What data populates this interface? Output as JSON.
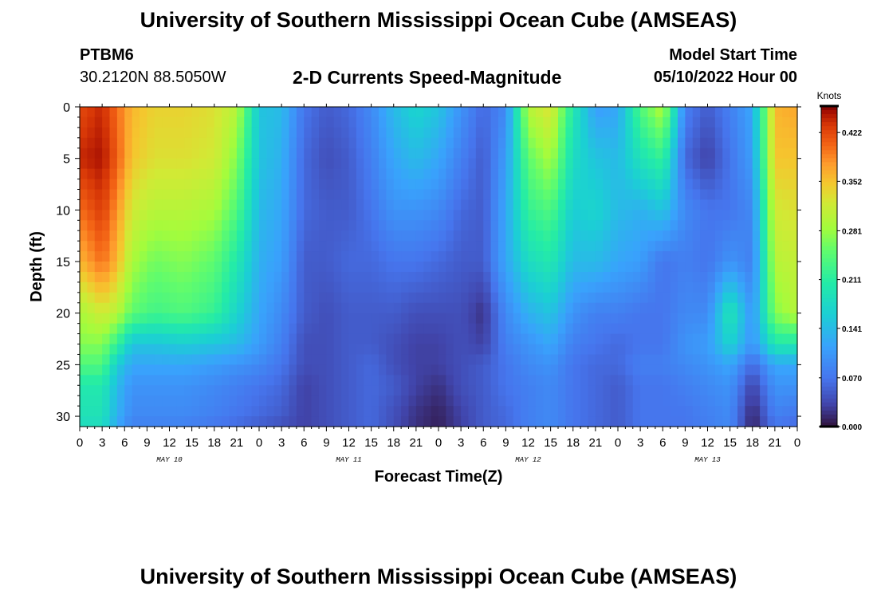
{
  "header": {
    "title": "University of Southern Mississippi Ocean Cube (AMSEAS)",
    "station": "PTBM6",
    "coords": "30.2120N  88.5050W",
    "subtitle": "2-D Currents Speed-Magnitude",
    "model_start_label": "Model Start Time",
    "model_start_value": "05/10/2022 Hour 00"
  },
  "footer": {
    "title": "University of Southern Mississippi Ocean Cube (AMSEAS)"
  },
  "chart_data": {
    "type": "heatmap",
    "xlabel": "Forecast Time(Z)",
    "ylabel": "Depth (ft)",
    "x_ticks": [
      "0",
      "3",
      "6",
      "9",
      "12",
      "15",
      "18",
      "21",
      "0",
      "3",
      "6",
      "9",
      "12",
      "15",
      "18",
      "21",
      "0",
      "3",
      "6",
      "9",
      "12",
      "15",
      "18",
      "21",
      "0",
      "3",
      "6",
      "9",
      "12",
      "15",
      "18",
      "21",
      "0"
    ],
    "x_range_hours": [
      0,
      96
    ],
    "day_labels": [
      {
        "label": "MAY 10",
        "hour": 12
      },
      {
        "label": "MAY 11",
        "hour": 36
      },
      {
        "label": "MAY 12",
        "hour": 60
      },
      {
        "label": "MAY 13",
        "hour": 84
      }
    ],
    "y_ticks": [
      "0",
      "5",
      "10",
      "15",
      "20",
      "25",
      "30"
    ],
    "ylim": [
      0,
      31
    ],
    "y_inverted": true,
    "colorbar": {
      "title": "Knots",
      "ticks": [
        "0.422",
        "0.352",
        "0.281",
        "0.211",
        "0.141",
        "0.070",
        "0.000"
      ],
      "range": [
        0.0,
        0.46
      ]
    },
    "time_hours": [
      0,
      3,
      5,
      7,
      10,
      14,
      18,
      21,
      24,
      27,
      30,
      33,
      36,
      39,
      42,
      45,
      48,
      51,
      54,
      57,
      60,
      63,
      66,
      69,
      72,
      75,
      78,
      81,
      84,
      87,
      90,
      93,
      96
    ],
    "depth_ft": [
      0,
      5,
      10,
      15,
      20,
      23,
      25,
      27,
      30,
      31
    ],
    "speed_knots": [
      [
        0.42,
        0.44,
        0.4,
        0.36,
        0.29,
        0.27,
        0.24,
        0.2,
        0.19,
        0.18
      ],
      [
        0.44,
        0.45,
        0.43,
        0.4,
        0.32,
        0.27,
        0.24,
        0.2,
        0.19,
        0.18
      ],
      [
        0.4,
        0.41,
        0.38,
        0.36,
        0.3,
        0.22,
        0.16,
        0.14,
        0.13,
        0.12
      ],
      [
        0.36,
        0.35,
        0.32,
        0.29,
        0.25,
        0.15,
        0.12,
        0.1,
        0.09,
        0.08
      ],
      [
        0.34,
        0.33,
        0.3,
        0.26,
        0.23,
        0.15,
        0.12,
        0.1,
        0.09,
        0.08
      ],
      [
        0.34,
        0.33,
        0.3,
        0.27,
        0.24,
        0.16,
        0.12,
        0.1,
        0.09,
        0.08
      ],
      [
        0.33,
        0.32,
        0.29,
        0.25,
        0.22,
        0.15,
        0.11,
        0.09,
        0.08,
        0.07
      ],
      [
        0.3,
        0.27,
        0.24,
        0.2,
        0.17,
        0.14,
        0.1,
        0.08,
        0.07,
        0.06
      ],
      [
        0.15,
        0.15,
        0.14,
        0.13,
        0.12,
        0.11,
        0.09,
        0.07,
        0.06,
        0.05
      ],
      [
        0.14,
        0.13,
        0.12,
        0.11,
        0.09,
        0.08,
        0.07,
        0.06,
        0.05,
        0.04
      ],
      [
        0.07,
        0.06,
        0.06,
        0.05,
        0.05,
        0.04,
        0.04,
        0.03,
        0.03,
        0.03
      ],
      [
        0.05,
        0.04,
        0.05,
        0.05,
        0.04,
        0.04,
        0.04,
        0.04,
        0.04,
        0.04
      ],
      [
        0.06,
        0.05,
        0.05,
        0.06,
        0.05,
        0.05,
        0.05,
        0.05,
        0.05,
        0.05
      ],
      [
        0.09,
        0.08,
        0.07,
        0.06,
        0.05,
        0.05,
        0.06,
        0.06,
        0.06,
        0.06
      ],
      [
        0.14,
        0.12,
        0.1,
        0.07,
        0.05,
        0.04,
        0.04,
        0.05,
        0.04,
        0.04
      ],
      [
        0.17,
        0.14,
        0.1,
        0.07,
        0.04,
        0.03,
        0.03,
        0.03,
        0.02,
        0.02
      ],
      [
        0.15,
        0.12,
        0.09,
        0.06,
        0.04,
        0.03,
        0.03,
        0.02,
        0.01,
        0.01
      ],
      [
        0.1,
        0.08,
        0.06,
        0.05,
        0.04,
        0.04,
        0.04,
        0.04,
        0.03,
        0.03
      ],
      [
        0.06,
        0.05,
        0.05,
        0.05,
        0.02,
        0.03,
        0.05,
        0.05,
        0.05,
        0.05
      ],
      [
        0.09,
        0.11,
        0.12,
        0.12,
        0.09,
        0.08,
        0.07,
        0.07,
        0.06,
        0.06
      ],
      [
        0.3,
        0.25,
        0.22,
        0.18,
        0.13,
        0.1,
        0.09,
        0.08,
        0.08,
        0.08
      ],
      [
        0.33,
        0.29,
        0.24,
        0.2,
        0.15,
        0.12,
        0.1,
        0.09,
        0.09,
        0.09
      ],
      [
        0.2,
        0.18,
        0.16,
        0.14,
        0.1,
        0.08,
        0.07,
        0.07,
        0.07,
        0.07
      ],
      [
        0.11,
        0.15,
        0.17,
        0.14,
        0.08,
        0.07,
        0.06,
        0.06,
        0.06,
        0.06
      ],
      [
        0.12,
        0.14,
        0.14,
        0.12,
        0.08,
        0.06,
        0.06,
        0.05,
        0.05,
        0.05
      ],
      [
        0.24,
        0.19,
        0.13,
        0.11,
        0.07,
        0.07,
        0.08,
        0.07,
        0.07,
        0.07
      ],
      [
        0.3,
        0.22,
        0.15,
        0.07,
        0.07,
        0.07,
        0.08,
        0.07,
        0.07,
        0.07
      ],
      [
        0.08,
        0.06,
        0.09,
        0.08,
        0.09,
        0.1,
        0.09,
        0.08,
        0.07,
        0.07
      ],
      [
        0.05,
        0.03,
        0.07,
        0.07,
        0.09,
        0.11,
        0.1,
        0.09,
        0.08,
        0.08
      ],
      [
        0.08,
        0.07,
        0.07,
        0.1,
        0.2,
        0.17,
        0.12,
        0.1,
        0.09,
        0.09
      ],
      [
        0.12,
        0.11,
        0.09,
        0.08,
        0.1,
        0.1,
        0.06,
        0.03,
        0.01,
        0.01
      ],
      [
        0.36,
        0.35,
        0.32,
        0.3,
        0.27,
        0.2,
        0.12,
        0.1,
        0.08,
        0.07
      ],
      [
        0.37,
        0.35,
        0.33,
        0.31,
        0.3,
        0.2,
        0.12,
        0.1,
        0.07,
        0.06
      ]
    ]
  }
}
